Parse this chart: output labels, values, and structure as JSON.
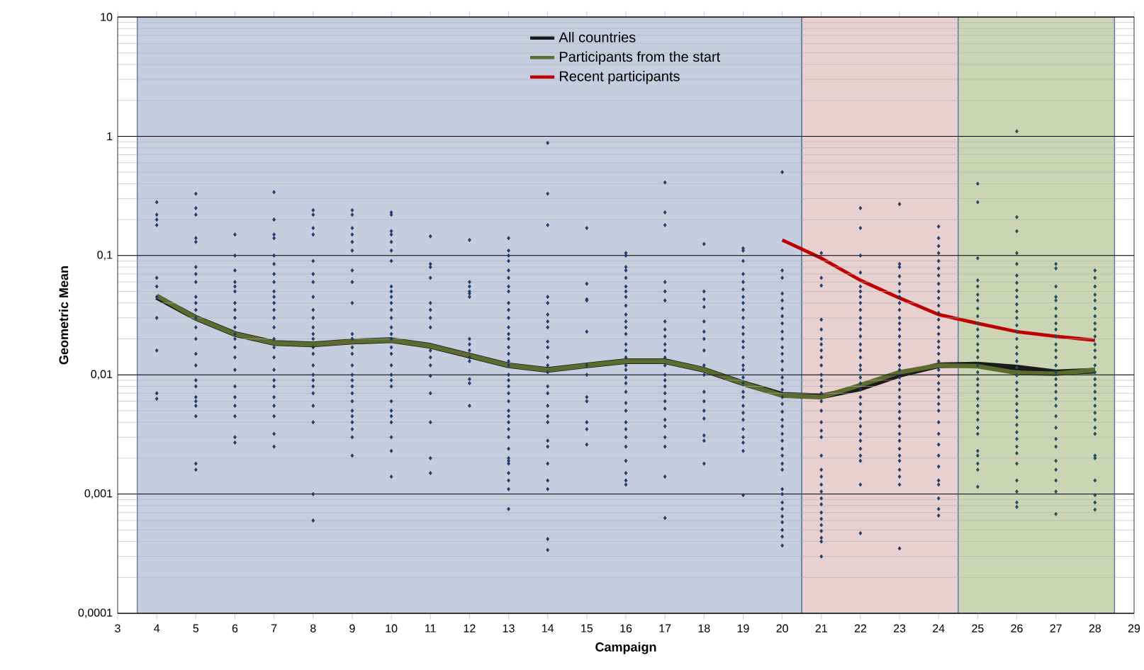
{
  "chart_data": {
    "type": "scatter",
    "xlabel": "Campaign",
    "ylabel": "Geometric Mean",
    "log": "y",
    "grid": "y",
    "marker": "diamond",
    "legend": "top",
    "xlim": [
      3,
      29
    ],
    "xticks": [
      3,
      4,
      5,
      6,
      7,
      8,
      9,
      10,
      11,
      12,
      13,
      14,
      15,
      16,
      17,
      18,
      19,
      20,
      21,
      22,
      23,
      24,
      25,
      26,
      27,
      28,
      29
    ],
    "ylim": [
      0.0001,
      10
    ],
    "yticks": [
      {
        "value": 0.0001,
        "label": "0,0001"
      },
      {
        "value": 0.001,
        "label": "0,001"
      },
      {
        "value": 0.01,
        "label": "0,01"
      },
      {
        "value": 0.1,
        "label": "0,1"
      },
      1,
      10
    ],
    "bands": [
      {
        "axis": "x",
        "from": 3.5,
        "to": 20.5,
        "color": "#c5cddf"
      },
      {
        "axis": "x",
        "from": 20.5,
        "to": 24.5,
        "color": "#e8d0d0"
      },
      {
        "axis": "x",
        "from": 24.5,
        "to": 28.5,
        "color": "#cbd5b4"
      }
    ],
    "series": [
      {
        "color": "#1f3a68",
        "x": [
          4,
          4,
          4,
          4,
          4,
          4,
          4,
          4,
          4,
          4,
          4
        ],
        "values": [
          0.28,
          0.22,
          0.2,
          0.18,
          0.065,
          0.055,
          0.045,
          0.03,
          0.016,
          0.007,
          0.0063
        ]
      },
      {
        "color": "#1f3a68",
        "x": [
          5,
          5,
          5,
          5,
          5,
          5,
          5,
          5,
          5,
          5,
          5,
          5,
          5,
          5,
          5,
          5,
          5,
          5,
          5,
          5,
          5,
          5,
          5,
          5
        ],
        "values": [
          0.33,
          0.25,
          0.22,
          0.14,
          0.13,
          0.08,
          0.07,
          0.06,
          0.045,
          0.04,
          0.035,
          0.03,
          0.025,
          0.02,
          0.015,
          0.012,
          0.009,
          0.008,
          0.0065,
          0.006,
          0.0055,
          0.0045,
          0.0018,
          0.0016
        ]
      },
      {
        "color": "#1f3a68",
        "x": [
          6,
          6,
          6,
          6,
          6,
          6,
          6,
          6,
          6,
          6,
          6,
          6,
          6,
          6,
          6,
          6,
          6,
          6,
          6,
          6,
          6
        ],
        "values": [
          0.15,
          0.1,
          0.075,
          0.06,
          0.055,
          0.05,
          0.04,
          0.035,
          0.03,
          0.025,
          0.022,
          0.02,
          0.017,
          0.014,
          0.011,
          0.008,
          0.0065,
          0.0055,
          0.0045,
          0.003,
          0.0027
        ]
      },
      {
        "color": "#1f3a68",
        "x": [
          7,
          7,
          7,
          7,
          7,
          7,
          7,
          7,
          7,
          7,
          7,
          7,
          7,
          7,
          7,
          7,
          7,
          7,
          7,
          7,
          7,
          7,
          7,
          7,
          7
        ],
        "values": [
          0.34,
          0.2,
          0.15,
          0.14,
          0.1,
          0.085,
          0.07,
          0.06,
          0.05,
          0.045,
          0.04,
          0.035,
          0.03,
          0.025,
          0.02,
          0.017,
          0.014,
          0.011,
          0.009,
          0.008,
          0.0065,
          0.0055,
          0.0045,
          0.0032,
          0.0025
        ]
      },
      {
        "color": "#1f3a68",
        "x": [
          8,
          8,
          8,
          8,
          8,
          8,
          8,
          8,
          8,
          8,
          8,
          8,
          8,
          8,
          8,
          8,
          8,
          8,
          8,
          8,
          8,
          8,
          8,
          8
        ],
        "values": [
          0.24,
          0.22,
          0.17,
          0.15,
          0.09,
          0.07,
          0.06,
          0.045,
          0.035,
          0.03,
          0.025,
          0.022,
          0.02,
          0.017,
          0.015,
          0.012,
          0.01,
          0.009,
          0.008,
          0.007,
          0.0055,
          0.004,
          0.001,
          0.0006
        ]
      },
      {
        "color": "#1f3a68",
        "x": [
          9,
          9,
          9,
          9,
          9,
          9,
          9,
          9,
          9,
          9,
          9,
          9,
          9,
          9,
          9,
          9,
          9,
          9,
          9,
          9,
          9,
          9,
          9,
          9,
          9
        ],
        "values": [
          0.24,
          0.22,
          0.17,
          0.15,
          0.13,
          0.11,
          0.075,
          0.06,
          0.04,
          0.022,
          0.02,
          0.017,
          0.015,
          0.012,
          0.01,
          0.009,
          0.008,
          0.007,
          0.006,
          0.005,
          0.0045,
          0.004,
          0.0035,
          0.003,
          0.0021
        ]
      },
      {
        "color": "#1f3a68",
        "x": [
          10,
          10,
          10,
          10,
          10,
          10,
          10,
          10,
          10,
          10,
          10,
          10,
          10,
          10,
          10,
          10,
          10,
          10,
          10,
          10,
          10,
          10,
          10,
          10,
          10,
          10,
          10,
          10,
          10
        ],
        "values": [
          0.23,
          0.22,
          0.16,
          0.15,
          0.13,
          0.11,
          0.09,
          0.055,
          0.05,
          0.045,
          0.04,
          0.035,
          0.03,
          0.025,
          0.022,
          0.02,
          0.017,
          0.015,
          0.012,
          0.01,
          0.009,
          0.008,
          0.006,
          0.005,
          0.0045,
          0.004,
          0.003,
          0.0023,
          0.0014
        ]
      },
      {
        "color": "#1f3a68",
        "x": [
          11,
          11,
          11,
          11,
          11,
          11,
          11,
          11,
          11,
          11,
          11,
          11,
          11,
          11,
          11,
          11
        ],
        "values": [
          0.145,
          0.085,
          0.08,
          0.065,
          0.04,
          0.035,
          0.03,
          0.025,
          0.016,
          0.014,
          0.012,
          0.0098,
          0.007,
          0.004,
          0.002,
          0.0015
        ]
      },
      {
        "color": "#1f3a68",
        "x": [
          12,
          12,
          12,
          12,
          12,
          12,
          12,
          12,
          12,
          12,
          12,
          12,
          12,
          12
        ],
        "values": [
          0.135,
          0.06,
          0.055,
          0.05,
          0.048,
          0.045,
          0.02,
          0.018,
          0.016,
          0.014,
          0.013,
          0.0092,
          0.0085,
          0.0055
        ]
      },
      {
        "color": "#1f3a68",
        "x": [
          13,
          13,
          13,
          13,
          13,
          13,
          13,
          13,
          13,
          13,
          13,
          13,
          13,
          13,
          13,
          13,
          13,
          13,
          13,
          13,
          13,
          13,
          13,
          13,
          13,
          13,
          13,
          13,
          13,
          13,
          13,
          13,
          13,
          13,
          13,
          13
        ],
        "values": [
          0.14,
          0.11,
          0.1,
          0.09,
          0.075,
          0.065,
          0.055,
          0.05,
          0.04,
          0.035,
          0.03,
          0.025,
          0.022,
          0.02,
          0.017,
          0.015,
          0.013,
          0.012,
          0.01,
          0.009,
          0.008,
          0.007,
          0.006,
          0.005,
          0.0045,
          0.004,
          0.0035,
          0.003,
          0.0024,
          0.002,
          0.0019,
          0.0018,
          0.0015,
          0.0013,
          0.0011,
          0.00075
        ]
      },
      {
        "color": "#1f3a68",
        "x": [
          14,
          14,
          14,
          14,
          14,
          14,
          14,
          14,
          14,
          14,
          14,
          14,
          14,
          14,
          14,
          14,
          14,
          14,
          14,
          14,
          14,
          14,
          14,
          14,
          14
        ],
        "values": [
          0.88,
          0.33,
          0.18,
          0.045,
          0.04,
          0.032,
          0.028,
          0.025,
          0.019,
          0.017,
          0.014,
          0.012,
          0.0105,
          0.008,
          0.007,
          0.0055,
          0.0045,
          0.004,
          0.0028,
          0.0025,
          0.0018,
          0.0013,
          0.0011,
          0.00042,
          0.00034
        ]
      },
      {
        "color": "#1f3a68",
        "x": [
          15,
          15,
          15,
          15,
          15,
          15,
          15,
          15,
          15,
          15,
          15,
          15
        ],
        "values": [
          0.17,
          0.058,
          0.043,
          0.042,
          0.023,
          0.012,
          0.01,
          0.0065,
          0.006,
          0.004,
          0.0035,
          0.0026
        ]
      },
      {
        "color": "#1f3a68",
        "x": [
          16,
          16,
          16,
          16,
          16,
          16,
          16,
          16,
          16,
          16,
          16,
          16,
          16,
          16,
          16,
          16,
          16,
          16,
          16,
          16,
          16,
          16,
          16,
          16,
          16,
          16,
          16,
          16,
          16,
          16,
          16
        ],
        "values": [
          0.105,
          0.1,
          0.08,
          0.075,
          0.065,
          0.055,
          0.05,
          0.045,
          0.038,
          0.032,
          0.028,
          0.025,
          0.022,
          0.018,
          0.016,
          0.014,
          0.012,
          0.011,
          0.0095,
          0.0085,
          0.0072,
          0.0058,
          0.005,
          0.004,
          0.0035,
          0.003,
          0.0025,
          0.0019,
          0.0015,
          0.0013,
          0.0012
        ]
      },
      {
        "color": "#1f3a68",
        "x": [
          17,
          17,
          17,
          17,
          17,
          17,
          17,
          17,
          17,
          17,
          17,
          17,
          17,
          17,
          17,
          17,
          17,
          17,
          17,
          17,
          17,
          17,
          17,
          17,
          17
        ],
        "values": [
          0.41,
          0.23,
          0.18,
          0.06,
          0.05,
          0.042,
          0.028,
          0.024,
          0.021,
          0.018,
          0.016,
          0.014,
          0.012,
          0.01,
          0.009,
          0.008,
          0.007,
          0.006,
          0.0052,
          0.0042,
          0.0037,
          0.003,
          0.0025,
          0.0014,
          0.00063
        ]
      },
      {
        "color": "#1f3a68",
        "x": [
          18,
          18,
          18,
          18,
          18,
          18,
          18,
          18,
          18,
          18,
          18,
          18,
          18,
          18,
          18,
          18,
          18
        ],
        "values": [
          0.125,
          0.05,
          0.043,
          0.037,
          0.028,
          0.023,
          0.02,
          0.016,
          0.012,
          0.01,
          0.0072,
          0.006,
          0.005,
          0.0043,
          0.0031,
          0.0028,
          0.0018
        ]
      },
      {
        "color": "#1f3a68",
        "x": [
          19,
          19,
          19,
          19,
          19,
          19,
          19,
          19,
          19,
          19,
          19,
          19,
          19,
          19,
          19,
          19,
          19,
          19,
          19,
          19,
          19,
          19,
          19,
          19,
          19,
          19,
          19,
          19,
          19
        ],
        "values": [
          0.115,
          0.11,
          0.09,
          0.07,
          0.06,
          0.052,
          0.045,
          0.04,
          0.035,
          0.03,
          0.025,
          0.022,
          0.019,
          0.017,
          0.014,
          0.012,
          0.011,
          0.0095,
          0.0085,
          0.0072,
          0.0065,
          0.0055,
          0.0048,
          0.0042,
          0.0035,
          0.003,
          0.0027,
          0.0023,
          0.00098
        ]
      },
      {
        "color": "#1f3a68",
        "x": [
          20,
          20,
          20,
          20,
          20,
          20,
          20,
          20,
          20,
          20,
          20,
          20,
          20,
          20,
          20,
          20,
          20,
          20,
          20,
          20,
          20,
          20,
          20,
          20,
          20,
          20,
          20,
          20,
          20,
          20,
          20,
          20,
          20,
          20,
          20,
          20,
          20
        ],
        "values": [
          0.5,
          0.075,
          0.065,
          0.048,
          0.042,
          0.036,
          0.031,
          0.027,
          0.023,
          0.02,
          0.017,
          0.015,
          0.013,
          0.011,
          0.0095,
          0.0085,
          0.0075,
          0.0065,
          0.0057,
          0.0049,
          0.0042,
          0.0037,
          0.0032,
          0.0028,
          0.0024,
          0.0021,
          0.0018,
          0.0016,
          0.0011,
          0.001,
          0.00085,
          0.00075,
          0.00065,
          0.00058,
          0.0005,
          0.00044,
          0.00037
        ]
      },
      {
        "color": "#1f3a68",
        "x": [
          21,
          21,
          21,
          21,
          21,
          21,
          21,
          21,
          21,
          21,
          21,
          21,
          21,
          21,
          21,
          21,
          21,
          21,
          21,
          21,
          21,
          21,
          21,
          21,
          21,
          21,
          21,
          21,
          21,
          21,
          21,
          21,
          21
        ],
        "values": [
          0.105,
          0.065,
          0.056,
          0.029,
          0.024,
          0.02,
          0.018,
          0.016,
          0.014,
          0.012,
          0.01,
          0.009,
          0.008,
          0.007,
          0.006,
          0.005,
          0.004,
          0.0034,
          0.003,
          0.0021,
          0.0016,
          0.0014,
          0.0012,
          0.00105,
          0.00092,
          0.00082,
          0.0007,
          0.00062,
          0.00055,
          0.00049,
          0.00043,
          0.0004,
          0.0003
        ]
      },
      {
        "color": "#1f3a68",
        "x": [
          22,
          22,
          22,
          22,
          22,
          22,
          22,
          22,
          22,
          22,
          22,
          22,
          22,
          22,
          22,
          22,
          22,
          22,
          22,
          22,
          22,
          22,
          22,
          22,
          22,
          22,
          22,
          22,
          22,
          22,
          22,
          22,
          22
        ],
        "values": [
          0.25,
          0.17,
          0.1,
          0.072,
          0.055,
          0.05,
          0.045,
          0.04,
          0.035,
          0.03,
          0.027,
          0.024,
          0.021,
          0.018,
          0.016,
          0.014,
          0.012,
          0.011,
          0.0095,
          0.0085,
          0.0075,
          0.0065,
          0.0057,
          0.0049,
          0.0043,
          0.0037,
          0.0032,
          0.0028,
          0.0024,
          0.0021,
          0.0019,
          0.0012,
          0.00047
        ]
      },
      {
        "color": "#1f3a68",
        "x": [
          23,
          23,
          23,
          23,
          23,
          23,
          23,
          23,
          23,
          23,
          23,
          23,
          23,
          23,
          23,
          23,
          23,
          23,
          23,
          23,
          23,
          23,
          23,
          23,
          23,
          23,
          23,
          23,
          23,
          23,
          23,
          23,
          23,
          23,
          23
        ],
        "values": [
          0.27,
          0.085,
          0.08,
          0.067,
          0.058,
          0.05,
          0.045,
          0.04,
          0.035,
          0.03,
          0.027,
          0.024,
          0.021,
          0.018,
          0.016,
          0.014,
          0.012,
          0.011,
          0.0095,
          0.0085,
          0.0075,
          0.0065,
          0.0057,
          0.0049,
          0.0043,
          0.0037,
          0.0032,
          0.0028,
          0.0024,
          0.0021,
          0.0019,
          0.0016,
          0.0014,
          0.0012,
          0.00035
        ]
      },
      {
        "color": "#1f3a68",
        "x": [
          24,
          24,
          24,
          24,
          24,
          24,
          24,
          24,
          24,
          24,
          24,
          24,
          24,
          24,
          24,
          24,
          24,
          24,
          24,
          24,
          24,
          24,
          24,
          24,
          24,
          24,
          24,
          24,
          24,
          24,
          24,
          24,
          24,
          24,
          24,
          24
        ],
        "values": [
          0.175,
          0.14,
          0.12,
          0.105,
          0.09,
          0.078,
          0.068,
          0.058,
          0.05,
          0.044,
          0.038,
          0.033,
          0.029,
          0.025,
          0.022,
          0.019,
          0.017,
          0.015,
          0.013,
          0.011,
          0.0098,
          0.0085,
          0.0075,
          0.0065,
          0.0057,
          0.005,
          0.004,
          0.0032,
          0.0026,
          0.0021,
          0.0017,
          0.0013,
          0.0012,
          0.00092,
          0.00075,
          0.00066
        ]
      },
      {
        "color": "#1f4a5a",
        "x": [
          25,
          25,
          25,
          25,
          25,
          25,
          25,
          25,
          25,
          25,
          25,
          25,
          25,
          25,
          25,
          25,
          25,
          25,
          25,
          25,
          25,
          25,
          25,
          25,
          25,
          25,
          25,
          25,
          25,
          25,
          25
        ],
        "values": [
          0.4,
          0.28,
          0.095,
          0.062,
          0.055,
          0.047,
          0.042,
          0.036,
          0.031,
          0.027,
          0.024,
          0.021,
          0.018,
          0.016,
          0.014,
          0.012,
          0.0105,
          0.0092,
          0.0082,
          0.0072,
          0.0063,
          0.0055,
          0.0048,
          0.0042,
          0.0036,
          0.0032,
          0.0023,
          0.0021,
          0.0018,
          0.0016,
          0.00115
        ]
      },
      {
        "color": "#1f4a5a",
        "x": [
          26,
          26,
          26,
          26,
          26,
          26,
          26,
          26,
          26,
          26,
          26,
          26,
          26,
          26,
          26,
          26,
          26,
          26,
          26,
          26,
          26,
          26,
          26,
          26,
          26,
          26,
          26,
          26,
          26,
          26,
          26,
          26,
          26,
          26,
          26,
          26
        ],
        "values": [
          1.1,
          0.21,
          0.16,
          0.105,
          0.085,
          0.068,
          0.059,
          0.051,
          0.045,
          0.039,
          0.034,
          0.03,
          0.026,
          0.023,
          0.02,
          0.017,
          0.015,
          0.013,
          0.0115,
          0.0099,
          0.0086,
          0.0075,
          0.0066,
          0.0057,
          0.005,
          0.0044,
          0.0038,
          0.0033,
          0.0029,
          0.0025,
          0.0022,
          0.0018,
          0.0013,
          0.00105,
          0.00085,
          0.00078
        ]
      },
      {
        "color": "#1f4a5a",
        "x": [
          27,
          27,
          27,
          27,
          27,
          27,
          27,
          27,
          27,
          27,
          27,
          27,
          27,
          27,
          27,
          27,
          27,
          27,
          27,
          27,
          27,
          27,
          27,
          27,
          27,
          27,
          27,
          27,
          27
        ],
        "values": [
          0.085,
          0.078,
          0.055,
          0.045,
          0.042,
          0.036,
          0.031,
          0.027,
          0.024,
          0.021,
          0.018,
          0.016,
          0.014,
          0.012,
          0.0105,
          0.0092,
          0.0082,
          0.0072,
          0.0063,
          0.0055,
          0.0045,
          0.0036,
          0.0029,
          0.0025,
          0.0019,
          0.0016,
          0.0013,
          0.00105,
          0.00068
        ]
      },
      {
        "color": "#1f4a5a",
        "x": [
          28,
          28,
          28,
          28,
          28,
          28,
          28,
          28,
          28,
          28,
          28,
          28,
          28,
          28,
          28,
          28,
          28,
          28,
          28,
          28,
          28,
          28,
          28,
          28,
          28,
          28,
          28,
          28,
          28,
          28
        ],
        "values": [
          0.075,
          0.065,
          0.055,
          0.047,
          0.042,
          0.036,
          0.031,
          0.027,
          0.024,
          0.021,
          0.018,
          0.016,
          0.014,
          0.012,
          0.0105,
          0.0092,
          0.0082,
          0.0072,
          0.0063,
          0.0055,
          0.0048,
          0.0042,
          0.0036,
          0.0032,
          0.0021,
          0.002,
          0.0013,
          0.00098,
          0.00085,
          0.00074
        ]
      },
      {
        "type": "line",
        "marker": "none",
        "name": "All countries",
        "color": "#1a1a1a",
        "x": [
          4,
          5,
          6,
          7,
          8,
          9,
          10,
          11,
          12,
          13,
          14,
          15,
          16,
          17,
          18,
          19,
          20,
          21,
          22,
          23,
          24,
          25,
          26,
          27,
          28
        ],
        "values": [
          0.045,
          0.03,
          0.022,
          0.0185,
          0.018,
          0.019,
          0.0195,
          0.0175,
          0.0145,
          0.012,
          0.011,
          0.012,
          0.013,
          0.013,
          0.011,
          0.0085,
          0.0068,
          0.0066,
          0.0077,
          0.01,
          0.012,
          0.0122,
          0.0115,
          0.0105,
          0.0108
        ]
      },
      {
        "type": "line",
        "marker": "none",
        "name": "Participants from the start",
        "color": "#5e6b2e",
        "x": [
          4,
          5,
          6,
          7,
          8,
          9,
          10,
          11,
          12,
          13,
          14,
          15,
          16,
          17,
          18,
          19,
          20,
          21,
          22,
          23,
          24,
          25,
          26,
          27,
          28
        ],
        "values": [
          0.046,
          0.03,
          0.022,
          0.0185,
          0.018,
          0.019,
          0.0195,
          0.0175,
          0.0145,
          0.012,
          0.011,
          0.012,
          0.013,
          0.013,
          0.011,
          0.0085,
          0.0067,
          0.0065,
          0.0082,
          0.0105,
          0.012,
          0.0118,
          0.0104,
          0.0102,
          0.011
        ]
      },
      {
        "type": "line",
        "marker": "none",
        "name": "Recent  participants",
        "color": "#c00000",
        "x": [
          20,
          21,
          22,
          23,
          24,
          25,
          26,
          27,
          28
        ],
        "values": [
          0.135,
          0.095,
          0.062,
          0.044,
          0.032,
          0.027,
          0.023,
          0.021,
          0.0195
        ]
      }
    ]
  }
}
